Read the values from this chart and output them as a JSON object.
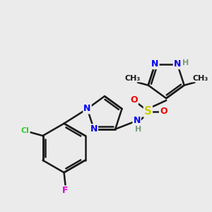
{
  "background_color": "#ebebeb",
  "bond_color": "#1a1a1a",
  "atom_colors": {
    "N": "#0000ee",
    "H": "#7a9a7a",
    "O": "#ee0000",
    "S": "#cccc00",
    "Cl": "#33cc33",
    "F": "#dd00dd",
    "C": "#1a1a1a"
  },
  "figsize": [
    3.0,
    3.0
  ],
  "dpi": 100
}
